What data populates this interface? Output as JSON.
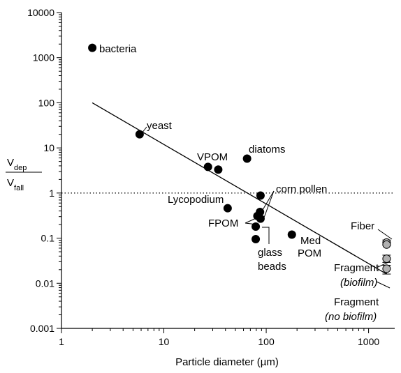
{
  "chart_data": {
    "type": "scatter",
    "x_scale": "log",
    "y_scale": "log",
    "xlim": [
      1,
      1800
    ],
    "ylim": [
      0.001,
      10000
    ],
    "xlabel": "Particle diameter (µm)",
    "ylabel": {
      "numerator": "V",
      "numerator_sub": "dep",
      "denominator": "V",
      "denominator_sub": "fall"
    },
    "x_ticks": [
      {
        "value": 1,
        "label": "1"
      },
      {
        "value": 10,
        "label": "10"
      },
      {
        "value": 100,
        "label": "100"
      },
      {
        "value": 1000,
        "label": "1000"
      }
    ],
    "y_ticks": [
      {
        "value": 0.001,
        "label": "0.001"
      },
      {
        "value": 0.01,
        "label": "0.01"
      },
      {
        "value": 0.1,
        "label": "0.1"
      },
      {
        "value": 1,
        "label": "1"
      },
      {
        "value": 10,
        "label": "10"
      },
      {
        "value": 100,
        "label": "100"
      },
      {
        "value": 1000,
        "label": "1000"
      },
      {
        "value": 10000,
        "label": "10000"
      }
    ],
    "grid": false,
    "reference_line": {
      "y": 1,
      "style": "dotted"
    },
    "fit_line": {
      "x": [
        2,
        1500
      ],
      "y": [
        100,
        0.016
      ]
    },
    "series": [
      {
        "marker_color": "#000000",
        "points": [
          {
            "x": 2,
            "y": 1650
          },
          {
            "x": 5.8,
            "y": 20
          },
          {
            "x": 27,
            "y": 3.8
          },
          {
            "x": 34,
            "y": 3.3
          },
          {
            "x": 65,
            "y": 5.8
          },
          {
            "x": 42,
            "y": 0.46
          },
          {
            "x": 88,
            "y": 0.88
          },
          {
            "x": 87,
            "y": 0.38
          },
          {
            "x": 82,
            "y": 0.31
          },
          {
            "x": 88,
            "y": 0.27
          },
          {
            "x": 79,
            "y": 0.18
          },
          {
            "x": 79,
            "y": 0.095
          },
          {
            "x": 178,
            "y": 0.12
          }
        ]
      },
      {
        "marker_color": "#b0b0b0",
        "points": [
          {
            "x": 1500,
            "y": 0.08,
            "err_low": 0.07,
            "err_high": 0.091
          },
          {
            "x": 1500,
            "y": 0.072
          },
          {
            "x": 1500,
            "y": 0.035,
            "err_low": 0.029,
            "err_high": 0.042
          },
          {
            "x": 1500,
            "y": 0.021,
            "err_low": 0.016,
            "err_high": 0.025
          }
        ]
      }
    ],
    "annotations": [
      {
        "id": "bacteria",
        "lines": [
          "bacteria"
        ]
      },
      {
        "id": "yeast",
        "lines": [
          "yeast"
        ]
      },
      {
        "id": "vpom",
        "lines": [
          "VPOM"
        ]
      },
      {
        "id": "diatoms",
        "lines": [
          "diatoms"
        ]
      },
      {
        "id": "corn",
        "lines": [
          "corn pollen"
        ]
      },
      {
        "id": "lyco",
        "lines": [
          "Lycopodium"
        ]
      },
      {
        "id": "fpom",
        "lines": [
          "FPOM"
        ]
      },
      {
        "id": "glass",
        "lines": [
          "glass",
          "beads"
        ]
      },
      {
        "id": "medpom",
        "lines": [
          "Med",
          "POM"
        ]
      },
      {
        "id": "fiber",
        "lines": [
          "Fiber"
        ]
      },
      {
        "id": "frag_bio",
        "lines": [
          "Fragment",
          "(biofilm)"
        ]
      },
      {
        "id": "frag_nobio",
        "lines": [
          "Fragment",
          "(no biofilm)"
        ]
      }
    ]
  }
}
